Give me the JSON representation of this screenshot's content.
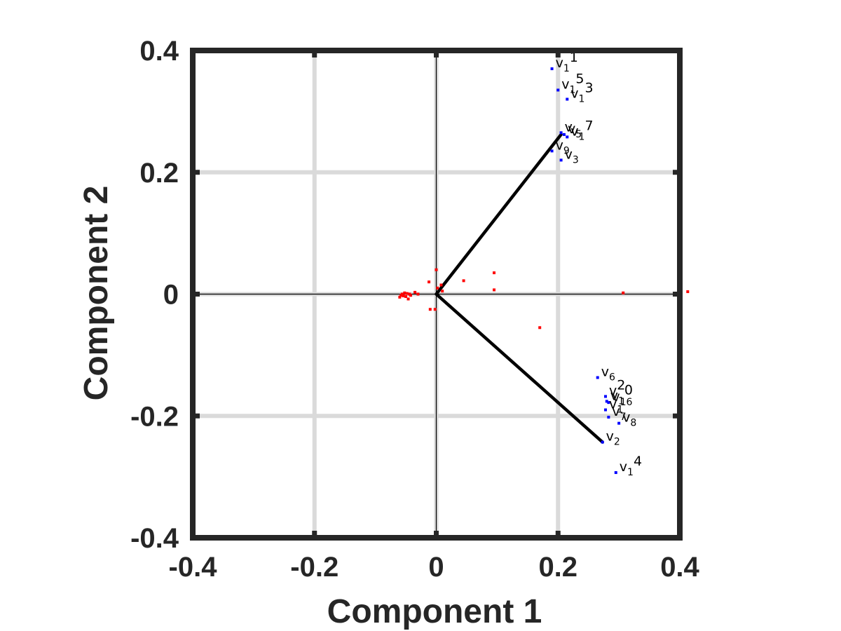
{
  "chart_data": {
    "type": "scatter",
    "subtype": "biplot",
    "xlabel": "Component 1",
    "ylabel": "Component 2",
    "xlim": [
      -0.4,
      0.4
    ],
    "ylim": [
      -0.4,
      0.4
    ],
    "xticks": [
      -0.4,
      -0.2,
      0,
      0.2,
      0.4
    ],
    "yticks": [
      -0.4,
      -0.2,
      0,
      0.2,
      0.4
    ],
    "xtick_labels": [
      "-0.4",
      "-0.2",
      "0",
      "0.2",
      "0.4"
    ],
    "ytick_labels": [
      "-0.4",
      "-0.2",
      "0",
      "0.2",
      "0.4"
    ],
    "grid": true,
    "colors": {
      "axes": "#262626",
      "grid": "#dadada",
      "variables": "#0000ff",
      "observations": "#ff0000",
      "vectors": "#000000"
    },
    "variables": [
      {
        "name": "v",
        "sub": "1",
        "sup": "1",
        "x": 0.19,
        "y": 0.37
      },
      {
        "name": "v",
        "sub": "1",
        "sup": "5",
        "x": 0.2,
        "y": 0.335
      },
      {
        "name": "v",
        "sub": "1",
        "sup": "3",
        "x": 0.215,
        "y": 0.32
      },
      {
        "name": "v",
        "sub": "",
        "sup": "",
        "x": 0.205,
        "y": 0.265
      },
      {
        "name": "v",
        "sub": "5",
        "sup": "",
        "x": 0.21,
        "y": 0.262
      },
      {
        "name": "v",
        "sub": "1",
        "sup": "7",
        "x": 0.215,
        "y": 0.258
      },
      {
        "name": "v",
        "sub": "9",
        "sup": "",
        "x": 0.19,
        "y": 0.235
      },
      {
        "name": "v",
        "sub": "3",
        "sup": "",
        "x": 0.205,
        "y": 0.22
      },
      {
        "name": "v",
        "sub": "6",
        "sup": "",
        "x": 0.265,
        "y": -0.137
      },
      {
        "name": "v",
        "sub": "",
        "sup": "2",
        "x": 0.278,
        "y": -0.168
      },
      {
        "name": "v",
        "sub": "1",
        "sup": "0",
        "x": 0.28,
        "y": -0.176
      },
      {
        "name": "v",
        "sub": "16",
        "sup": "",
        "x": 0.283,
        "y": -0.178
      },
      {
        "name": "v",
        "sub": "1",
        "sup": "",
        "x": 0.278,
        "y": -0.19
      },
      {
        "name": "v",
        "sub": "7",
        "sup": "",
        "x": 0.283,
        "y": -0.202
      },
      {
        "name": "v",
        "sub": "8",
        "sup": "",
        "x": 0.3,
        "y": -0.212
      },
      {
        "name": "v",
        "sub": "2",
        "sup": "",
        "x": 0.273,
        "y": -0.243
      },
      {
        "name": "v",
        "sub": "1",
        "sup": "4",
        "x": 0.295,
        "y": -0.293
      }
    ],
    "vectors": [
      {
        "x": 0.205,
        "y": 0.262
      },
      {
        "x": 0.273,
        "y": -0.243
      }
    ],
    "observations": [
      {
        "x": -0.06,
        "y": -0.005
      },
      {
        "x": -0.058,
        "y": -0.002
      },
      {
        "x": -0.056,
        "y": 0.0
      },
      {
        "x": -0.054,
        "y": -0.003
      },
      {
        "x": -0.052,
        "y": 0.002
      },
      {
        "x": -0.05,
        "y": -0.004
      },
      {
        "x": -0.048,
        "y": 0.001
      },
      {
        "x": -0.046,
        "y": -0.008
      },
      {
        "x": -0.044,
        "y": 0.0
      },
      {
        "x": -0.042,
        "y": -0.002
      },
      {
        "x": -0.035,
        "y": 0.003
      },
      {
        "x": -0.03,
        "y": 0.0
      },
      {
        "x": -0.012,
        "y": 0.02
      },
      {
        "x": -0.01,
        "y": -0.025
      },
      {
        "x": -0.002,
        "y": -0.025
      },
      {
        "x": 0.0,
        "y": 0.04
      },
      {
        "x": 0.002,
        "y": 0.01
      },
      {
        "x": 0.008,
        "y": 0.015
      },
      {
        "x": 0.01,
        "y": 0.005
      },
      {
        "x": 0.045,
        "y": 0.022
      },
      {
        "x": 0.095,
        "y": 0.035
      },
      {
        "x": 0.095,
        "y": 0.007
      },
      {
        "x": 0.17,
        "y": -0.055
      },
      {
        "x": 0.307,
        "y": 0.002
      },
      {
        "x": 0.413,
        "y": 0.004
      }
    ]
  }
}
